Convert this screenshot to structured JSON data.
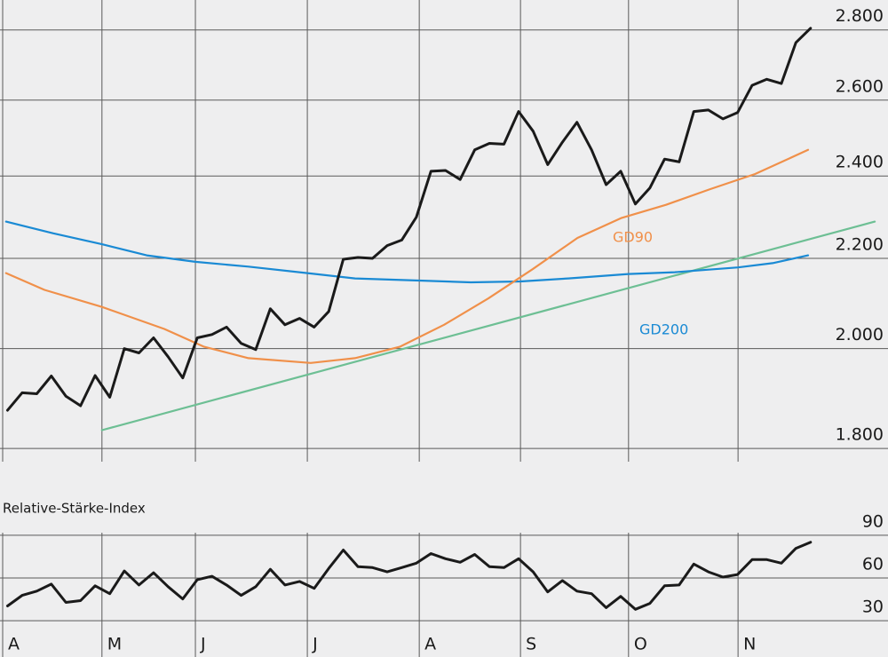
{
  "chart_data": [
    {
      "type": "line",
      "log_y": true,
      "grid": true,
      "xlim": [
        0,
        181
      ],
      "xticks": [
        0,
        20.4,
        39.6,
        62.6,
        85.6,
        106.4,
        128.6,
        151.1
      ],
      "ylim": [
        1775,
        2890
      ],
      "yticks": [
        {
          "value": 1800,
          "label": "1.800"
        },
        {
          "value": 2000,
          "label": "2.000"
        },
        {
          "value": 2200,
          "label": "2.200"
        },
        {
          "value": 2400,
          "label": "2.400"
        },
        {
          "value": 2600,
          "label": "2.600"
        },
        {
          "value": 2800,
          "label": "2.800"
        }
      ],
      "series": [
        {
          "color": "#6dbf94",
          "x": [
            20.4,
            179.2
          ],
          "values": [
            1835,
            2287
          ]
        },
        {
          "name": "GD200",
          "color": "#1a8ad4",
          "x": [
            0.7,
            10.4,
            20.4,
            29.6,
            39.6,
            50.5,
            62.6,
            72.4,
            85.6,
            96.2,
            106.4,
            116.2,
            128.6,
            138.1,
            151.1,
            158.2,
            165.5
          ],
          "values": [
            2287,
            2259,
            2233,
            2207,
            2192,
            2181,
            2166,
            2154,
            2149,
            2145,
            2147,
            2154,
            2164,
            2168,
            2179,
            2189,
            2207
          ]
        },
        {
          "name": "GD90",
          "color": "#f0904a",
          "x": [
            0.7,
            8.6,
            20.4,
            33.2,
            41.4,
            50.5,
            63.3,
            72.4,
            81.6,
            90.7,
            99.8,
            108.9,
            118.1,
            127.2,
            136.3,
            145.4,
            154.6,
            165.5
          ],
          "values": [
            2166,
            2128,
            2090,
            2042,
            2004,
            1980,
            1970,
            1980,
            2004,
            2051,
            2109,
            2175,
            2248,
            2296,
            2328,
            2367,
            2405,
            2467
          ]
        },
        {
          "color": "#1a1a1a",
          "x": [
            1,
            4,
            7,
            10,
            13,
            16,
            19,
            22,
            25,
            28,
            31,
            34,
            37,
            40,
            43,
            46,
            49,
            52,
            55,
            58,
            61,
            64,
            67,
            70,
            73,
            76,
            79,
            82,
            85,
            88,
            91,
            94,
            97,
            100,
            103,
            106,
            109,
            112,
            115,
            118,
            121,
            124,
            127,
            130,
            133,
            136,
            139,
            142,
            145,
            148,
            151,
            154,
            157,
            160,
            163,
            166
          ],
          "values": [
            1874,
            1909,
            1907,
            1943,
            1902,
            1883,
            1944,
            1900,
            2000,
            1991,
            2023,
            1983,
            1939,
            2023,
            2030,
            2046,
            2011,
            1998,
            2086,
            2051,
            2065,
            2046,
            2080,
            2198,
            2202,
            2200,
            2230,
            2243,
            2298,
            2412,
            2414,
            2391,
            2467,
            2484,
            2482,
            2569,
            2516,
            2429,
            2487,
            2540,
            2467,
            2378,
            2412,
            2330,
            2370,
            2443,
            2436,
            2569,
            2573,
            2549,
            2566,
            2641,
            2658,
            2646,
            2763,
            2805
          ]
        }
      ]
    },
    {
      "type": "line",
      "title": "Relative-Stärke-Index",
      "grid": true,
      "xlim": [
        0,
        181
      ],
      "xticks": [
        {
          "value": 0,
          "label": "A"
        },
        {
          "value": 20.4,
          "label": "M"
        },
        {
          "value": 39.6,
          "label": "J"
        },
        {
          "value": 62.6,
          "label": "J"
        },
        {
          "value": 85.6,
          "label": "A"
        },
        {
          "value": 106.4,
          "label": "S"
        },
        {
          "value": 128.6,
          "label": "O"
        },
        {
          "value": 151.1,
          "label": "N"
        }
      ],
      "ylim": [
        22,
        98
      ],
      "yticks": [
        30,
        60,
        90
      ],
      "series": [
        {
          "color": "#1a1a1a",
          "x": [
            1,
            4,
            7,
            10,
            13,
            16,
            19,
            22,
            25,
            28,
            31,
            34,
            37,
            40,
            43,
            46,
            49,
            52,
            55,
            58,
            61,
            64,
            67,
            70,
            73,
            76,
            79,
            82,
            85,
            88,
            91,
            94,
            97,
            100,
            103,
            106,
            109,
            112,
            115,
            118,
            121,
            124,
            127,
            130,
            133,
            136,
            139,
            142,
            145,
            148,
            151,
            154,
            157,
            160,
            163,
            166
          ],
          "values": [
            40.4,
            47.8,
            50.8,
            55.7,
            42.9,
            44.1,
            54.5,
            49.0,
            64.9,
            55.1,
            63.7,
            53.9,
            45.3,
            58.8,
            61.2,
            55.1,
            47.8,
            53.9,
            66.1,
            55.1,
            57.6,
            52.7,
            66.7,
            79.6,
            68.0,
            67.3,
            64.3,
            67.3,
            70.4,
            77.1,
            73.5,
            71.0,
            76.5,
            68.0,
            67.3,
            73.5,
            64.3,
            50.2,
            58.2,
            50.8,
            49.0,
            39.2,
            47.1,
            38.0,
            42.2,
            54.5,
            55.1,
            69.8,
            64.3,
            60.6,
            62.4,
            72.9,
            72.9,
            70.4,
            80.8,
            85.1
          ]
        }
      ]
    }
  ]
}
